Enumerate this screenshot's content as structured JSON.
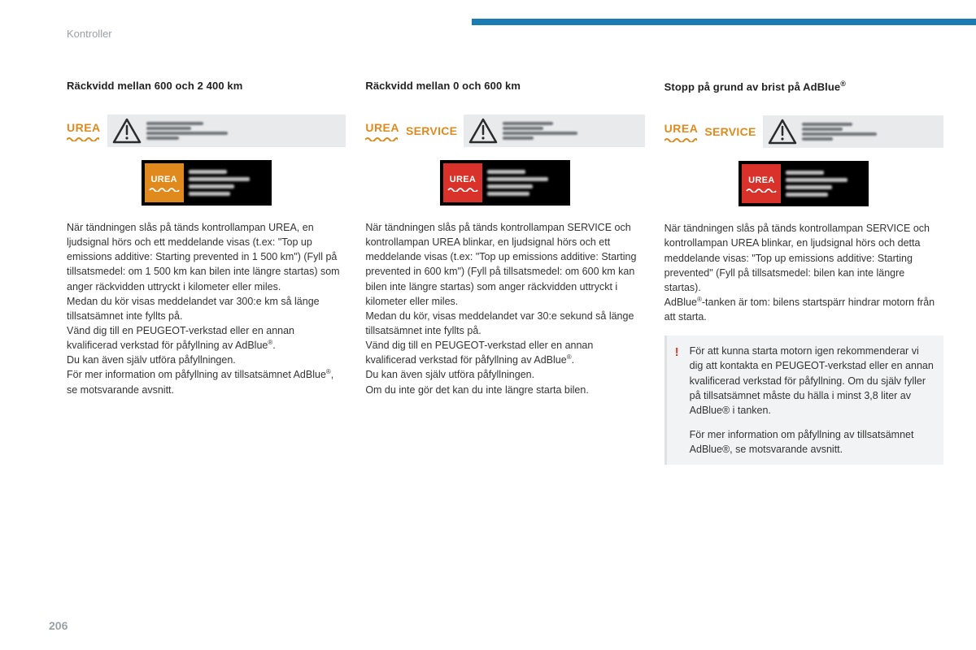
{
  "section_label": "Kontroller",
  "page_number": "206",
  "accent_color": "#1b7cb3",
  "urea_orange": "#e08a1d",
  "urea_red": "#d8322a",
  "col1": {
    "title": "Räckvidd mellan 600 och 2 400 km",
    "urea_label": "UREA",
    "badge_label": "UREA",
    "body": "När tändningen slås på tänds kontrollampan UREA, en ljudsignal hörs och ett meddelande visas (t.ex: \"Top up emissions additive: Starting prevented in 1 500 km\") (Fyll på tillsatsmedel: om 1 500 km kan bilen inte längre startas) som anger räckvidden uttryckt i kilometer eller miles.\nMedan du kör visas meddelandet var 300:e km så länge tillsatsämnet inte fyllts på.\nVänd dig till en PEUGEOT-verkstad eller en annan kvalificerad verkstad för påfyllning av AdBlue®.\nDu kan även själv utföra påfyllningen.\nFör mer information om påfyllning av tillsatsämnet AdBlue®, se motsvarande avsnitt."
  },
  "col2": {
    "title": "Räckvidd mellan 0 och 600 km",
    "urea_label": "UREA",
    "service_label": "SERVICE",
    "badge_label": "UREA",
    "body": "När tändningen slås på tänds kontrollampan SERVICE och kontrollampan UREA blinkar, en ljudsignal hörs och ett meddelande visas (t.ex: \"Top up emissions additive: Starting prevented in 600 km\") (Fyll på tillsatsmedel: om 600 km kan bilen inte längre startas) som anger räckvidden uttryckt i kilometer eller miles.\nMedan du kör, visas meddelandet var 30:e sekund så länge tillsatsämnet inte fyllts på.\nVänd dig till en PEUGEOT-verkstad eller en annan kvalificerad verkstad för påfyllning av AdBlue®.\nDu kan även själv utföra påfyllningen.\nOm du inte gör det kan du inte längre starta bilen."
  },
  "col3": {
    "title_pre": "Stopp på grund av brist på AdBlue",
    "title_sup": "®",
    "urea_label": "UREA",
    "service_label": "SERVICE",
    "badge_label": "UREA",
    "body": "När tändningen slås på tänds kontrollampan SERVICE och kontrollampan UREA blinkar, en ljudsignal hörs och detta meddelande visas: \"Top up emissions additive: Starting prevented\" (Fyll på tillsatsmedel: bilen kan inte längre startas).\nAdBlue®-tanken är tom: bilens startspärr hindrar motorn från att starta.",
    "callout1": "För att kunna starta motorn igen rekommenderar vi dig att kontakta en PEUGEOT-verkstad eller en annan kvalificerad verkstad för påfyllning. Om du själv fyller på tillsatsämnet måste du hälla i minst 3,8 liter av AdBlue® i tanken.",
    "callout2": "För mer information om påfyllning av tillsatsämnet AdBlue®, se motsvarande avsnitt."
  }
}
